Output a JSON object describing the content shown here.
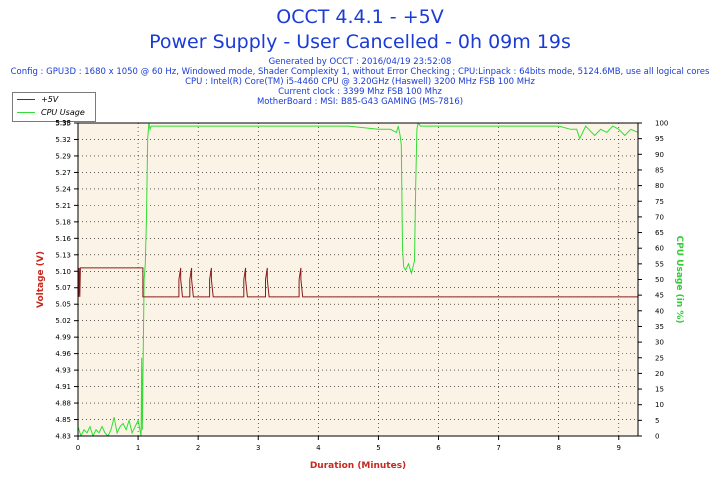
{
  "header": {
    "title": "OCCT 4.4.1 - +5V",
    "subtitle": "Power Supply - User Cancelled - 0h 09m 19s",
    "info_lines": [
      "Generated by OCCT : 2016/04/19 23:52:08",
      "Config : GPU3D : 1680 x 1050 @ 60 Hz, Windowed mode, Shader Complexity 1, without Error Checking ; CPU:Linpack : 64bits mode, 5124.6MB, use all logical cores",
      "CPU : Intel(R) Core(TM) i5-4460 CPU @ 3.20GHz (Haswell) 3200 MHz FSB 100 MHz",
      "Current clock : 3399 Mhz FSB 100 Mhz",
      "MotherBoard : MSI: B85-G43 GAMING (MS-7816)"
    ]
  },
  "legend": {
    "items": [
      {
        "label": "+5V",
        "color": "#8b1a1a"
      },
      {
        "label": "CPU Usage",
        "color": "#33dd33"
      }
    ]
  },
  "chart_data": {
    "type": "line",
    "xlabel": "Duration (Minutes)",
    "ylabel": "Voltage (V)",
    "y2label": "CPU Usage (in %)",
    "xlim": [
      0,
      9.32
    ],
    "ylim": [
      4.83,
      5.37
    ],
    "y2lim": [
      0,
      100
    ],
    "x_ticks": [
      "0",
      "1",
      "2",
      "3",
      "4",
      "5",
      "6",
      "7",
      "8",
      "9"
    ],
    "y_ticks": [
      "4.83",
      "4.85",
      "4.88",
      "4.91",
      "4.93",
      "4.96",
      "4.99",
      "5.02",
      "5.05",
      "5.07",
      "5.10",
      "5.13",
      "5.16",
      "5.18",
      "5.21",
      "5.24",
      "5.27",
      "5.29",
      "5.32",
      "5.35"
    ],
    "y_tick_top_partial": "5.38",
    "y2_ticks": [
      "0",
      "5",
      "10",
      "15",
      "20",
      "25",
      "30",
      "35",
      "40",
      "45",
      "50",
      "55",
      "60",
      "65",
      "70",
      "75",
      "80",
      "85",
      "90",
      "95",
      "100"
    ],
    "grid": true,
    "background": "#fbf4e6",
    "series": [
      {
        "name": "+5V",
        "color": "#8b1a1a",
        "axis": "left",
        "x": [
          0,
          0.005,
          0.01,
          0.02,
          0.03,
          0.04,
          0.05,
          1.08,
          1.08,
          1.68,
          1.68,
          1.71,
          1.71,
          1.74,
          1.74,
          1.86,
          1.86,
          1.89,
          1.89,
          1.92,
          1.92,
          2.19,
          2.19,
          2.22,
          2.22,
          2.25,
          2.25,
          2.76,
          2.76,
          2.79,
          2.79,
          2.82,
          2.82,
          3.12,
          3.12,
          3.15,
          3.15,
          3.18,
          3.18,
          3.68,
          3.68,
          3.71,
          3.71,
          3.74,
          3.74,
          9.32
        ],
        "y": [
          5.07,
          5.12,
          5.07,
          5.12,
          5.07,
          5.12,
          5.12,
          5.12,
          5.07,
          5.07,
          5.1,
          5.12,
          5.1,
          5.07,
          5.07,
          5.07,
          5.1,
          5.12,
          5.1,
          5.07,
          5.07,
          5.07,
          5.1,
          5.12,
          5.1,
          5.07,
          5.07,
          5.07,
          5.1,
          5.12,
          5.1,
          5.07,
          5.07,
          5.07,
          5.1,
          5.12,
          5.1,
          5.07,
          5.07,
          5.07,
          5.1,
          5.12,
          5.1,
          5.07,
          5.07,
          5.07
        ]
      },
      {
        "name": "CPU Usage",
        "color": "#33dd33",
        "axis": "right",
        "x": [
          0,
          0.05,
          0.1,
          0.15,
          0.2,
          0.25,
          0.3,
          0.35,
          0.4,
          0.45,
          0.5,
          0.55,
          0.6,
          0.65,
          0.7,
          0.75,
          0.8,
          0.85,
          0.9,
          0.95,
          1.0,
          1.05,
          1.06,
          1.07,
          1.1,
          1.12,
          1.14,
          1.16,
          1.18,
          1.2,
          1.22,
          1.25,
          1.5,
          2.0,
          2.5,
          3.0,
          3.5,
          4.0,
          4.5,
          5.0,
          5.2,
          5.3,
          5.33,
          5.36,
          5.38,
          5.4,
          5.42,
          5.45,
          5.5,
          5.55,
          5.6,
          5.62,
          5.64,
          5.66,
          5.7,
          6.0,
          6.5,
          7.0,
          7.5,
          8.0,
          8.2,
          8.3,
          8.35,
          8.4,
          8.45,
          8.5,
          8.6,
          8.7,
          8.8,
          8.9,
          9.0,
          9.1,
          9.2,
          9.32
        ],
        "y": [
          3,
          0,
          2,
          1,
          3,
          0,
          2,
          1,
          3,
          1,
          0,
          2,
          6,
          1,
          3,
          4,
          2,
          5,
          1,
          3,
          5,
          0,
          25,
          2,
          50,
          55,
          70,
          95,
          100,
          98,
          99,
          99,
          99,
          99,
          99,
          99,
          99,
          99,
          99,
          98,
          98,
          97,
          99,
          96,
          93,
          60,
          54,
          53,
          55,
          52,
          56,
          80,
          98,
          100,
          99,
          99,
          99,
          99,
          99,
          99,
          98,
          98,
          95,
          97,
          99,
          98,
          96,
          98,
          97,
          99,
          98,
          96,
          98,
          97
        ]
      }
    ]
  }
}
